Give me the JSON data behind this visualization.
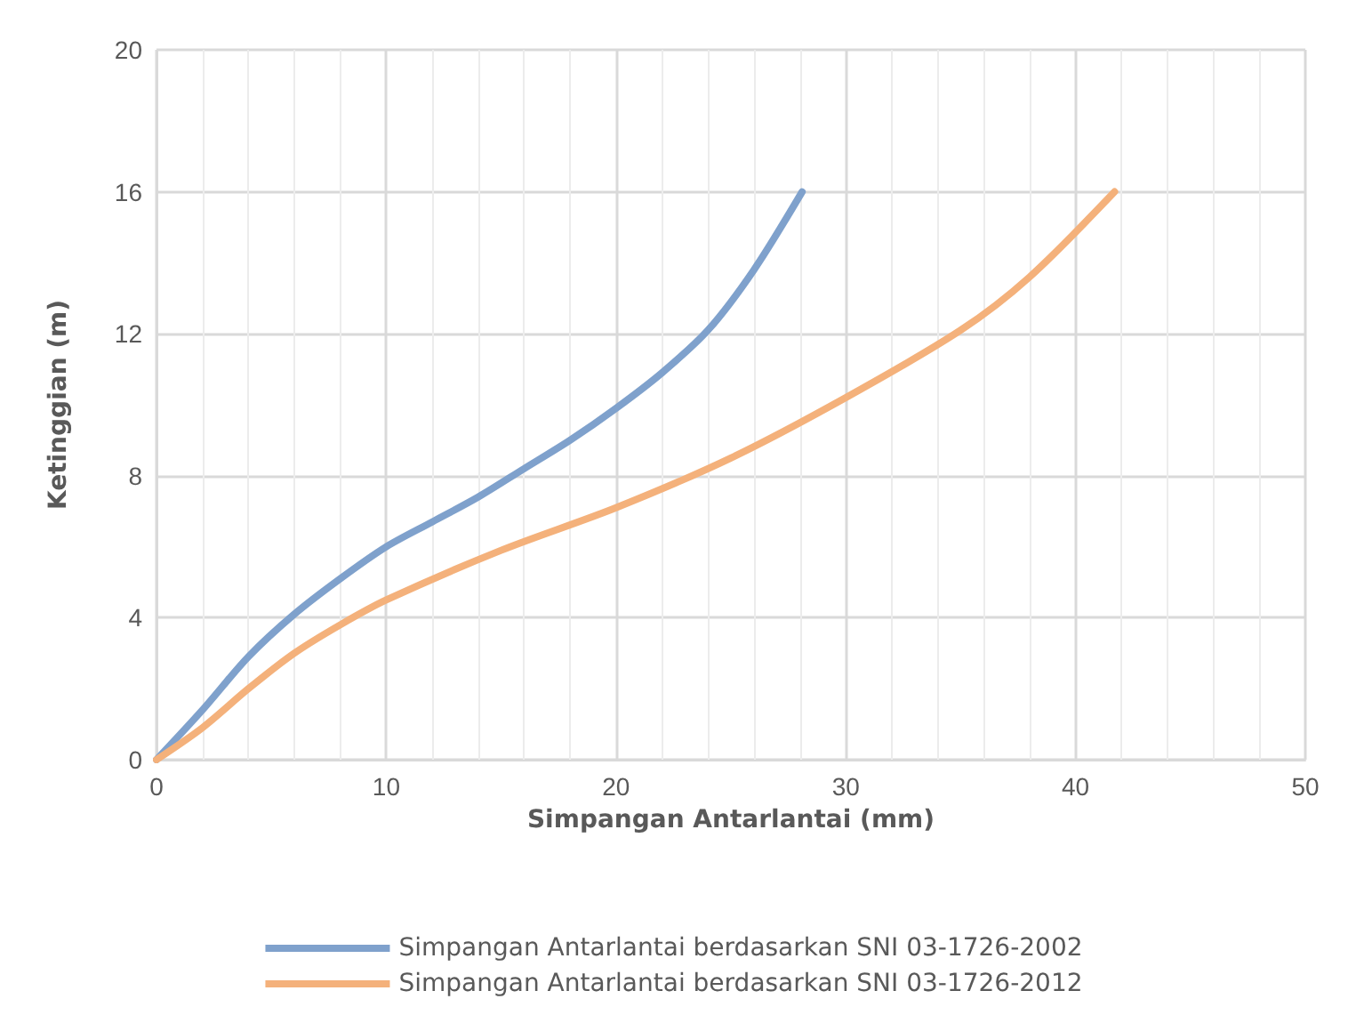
{
  "chart_data": {
    "type": "line",
    "xlabel": "Simpangan Antarlantai (mm)",
    "ylabel": "Ketinggian (m)",
    "xlim": [
      0,
      50
    ],
    "xticks": [
      0,
      10,
      20,
      30,
      40,
      50
    ],
    "ylim": [
      0,
      20
    ],
    "yticks": [
      0,
      4,
      8,
      12,
      16,
      20
    ],
    "grid": true,
    "legend": "bottom",
    "marker": "none",
    "line_style": "solid",
    "series": [
      {
        "name": "Simpangan Antarlantai berdasarkan SNI 03-1726-2002",
        "color": "#7fa1cc",
        "x": [
          0,
          2,
          4,
          6,
          8,
          10,
          12,
          14,
          16,
          18,
          20,
          22,
          24,
          26,
          28.1
        ],
        "values": [
          0,
          1.4,
          2.9,
          4.1,
          5.1,
          6.0,
          6.7,
          7.4,
          8.2,
          9.0,
          9.9,
          10.9,
          12.1,
          13.8,
          16
        ]
      },
      {
        "name": "Simpangan Antarlantai berdasarkan SNI 03-1726-2012",
        "color": "#f4b17b",
        "x": [
          0,
          2,
          4,
          6,
          8,
          10,
          15,
          20,
          25,
          30,
          35,
          38,
          41.7
        ],
        "values": [
          0,
          0.9,
          2.0,
          3.0,
          3.8,
          4.5,
          5.9,
          7.1,
          8.5,
          10.2,
          12.1,
          13.6,
          16
        ]
      }
    ]
  }
}
